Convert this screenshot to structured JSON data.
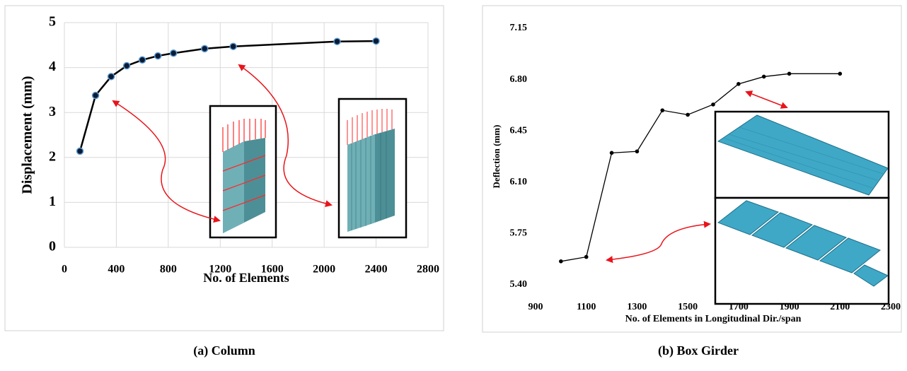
{
  "chart_data": [
    {
      "type": "line",
      "x_label": "No. of Elements",
      "y_label": "Displacement (mm)",
      "caption": "(a)  Column",
      "x": [
        120,
        240,
        360,
        480,
        600,
        720,
        840,
        1080,
        1300,
        2100,
        2400
      ],
      "values": [
        2.14,
        3.38,
        3.8,
        4.04,
        4.17,
        4.26,
        4.32,
        4.42,
        4.47,
        4.58,
        4.59
      ],
      "color": "#000000",
      "marker_edge_color": "#5b9bd5",
      "xlim": [
        0,
        2800
      ],
      "xticks": [
        0,
        400,
        800,
        1200,
        1600,
        2000,
        2400,
        2800
      ],
      "ylim": [
        0,
        5
      ],
      "yticks": [
        0,
        1,
        2,
        3,
        4,
        5
      ],
      "grid": true
    },
    {
      "type": "line",
      "x_label": "No. of Elements in Longitudinal Dir./span",
      "y_label": "Deflection (mm)",
      "caption": "(b)  Box Girder",
      "x": [
        1000,
        1100,
        1200,
        1300,
        1400,
        1500,
        1600,
        1700,
        1800,
        1900,
        2100
      ],
      "values": [
        5.56,
        5.59,
        6.3,
        6.31,
        6.59,
        6.56,
        6.63,
        6.77,
        6.82,
        6.84,
        6.84
      ],
      "color": "#000000",
      "xlim": [
        900,
        2300
      ],
      "xticks": [
        900,
        1100,
        1300,
        1500,
        1700,
        1900,
        2100,
        2300
      ],
      "ylim": [
        5.4,
        7.15
      ],
      "yticks": [
        {
          "value": 5.4,
          "label": "5.40"
        },
        5.75,
        {
          "value": 6.1,
          "label": "6.10"
        },
        6.45,
        {
          "value": 6.8,
          "label": "6.80"
        },
        7.15
      ],
      "grid": false
    }
  ]
}
